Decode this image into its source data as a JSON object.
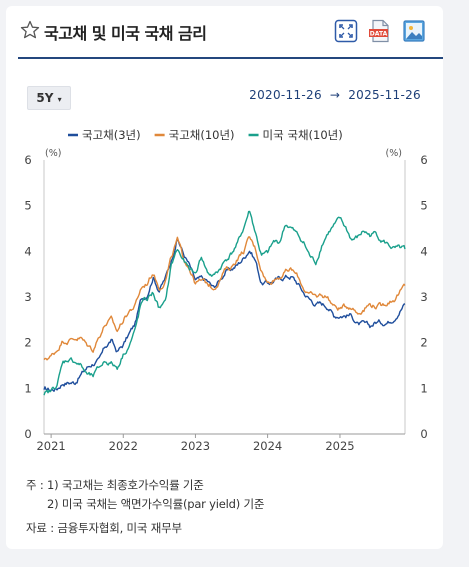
{
  "header": {
    "title": "국고채 및 미국 국채 금리",
    "icons": [
      "star-outline-icon",
      "fullscreen-icon",
      "data-download-icon",
      "image-download-icon"
    ],
    "data_icon_text": "DATA"
  },
  "controls": {
    "period_label": "5Y",
    "period_caret": "▾",
    "date_start": "2020-11-26",
    "date_arrow": "→",
    "date_end": "2025-11-26"
  },
  "notes": {
    "line1": "주 : 1)  국고채는 최종호가수익률 기준",
    "line2": "2)  미국 국채는 액면가수익률(par yield) 기준",
    "source": "자료 :  금융투자협회, 미국 재무부"
  },
  "chart_data": {
    "type": "line",
    "title": "",
    "y_unit_left": "(%)",
    "y_unit_right": "(%)",
    "ylim": [
      0,
      6
    ],
    "y_ticks": [
      0,
      1,
      2,
      3,
      4,
      5,
      6
    ],
    "xlim": [
      "2020-11-26",
      "2025-11-26"
    ],
    "x_ticks": [
      "2021",
      "2022",
      "2023",
      "2024",
      "2025"
    ],
    "x_tick_dates": [
      "2021-01-01",
      "2022-01-01",
      "2023-01-01",
      "2024-01-01",
      "2025-01-01"
    ],
    "grid": false,
    "legend_position": "top",
    "series": [
      {
        "name": "국고채(3년)",
        "color": "#1f4e9c",
        "x": [
          "2020-11-26",
          "2021-01-01",
          "2021-02-01",
          "2021-03-01",
          "2021-04-01",
          "2021-05-01",
          "2021-06-01",
          "2021-07-01",
          "2021-08-01",
          "2021-09-01",
          "2021-10-01",
          "2021-11-01",
          "2021-12-01",
          "2022-01-01",
          "2022-02-01",
          "2022-03-01",
          "2022-04-01",
          "2022-05-01",
          "2022-06-01",
          "2022-07-01",
          "2022-08-01",
          "2022-09-01",
          "2022-10-01",
          "2022-11-01",
          "2022-12-01",
          "2023-01-01",
          "2023-02-01",
          "2023-03-01",
          "2023-04-01",
          "2023-05-01",
          "2023-06-01",
          "2023-07-01",
          "2023-08-01",
          "2023-09-01",
          "2023-10-01",
          "2023-11-01",
          "2023-12-01",
          "2024-01-01",
          "2024-02-01",
          "2024-03-01",
          "2024-04-01",
          "2024-05-01",
          "2024-06-01",
          "2024-07-01",
          "2024-08-01",
          "2024-09-01",
          "2024-10-01",
          "2024-11-01",
          "2024-12-01",
          "2025-01-01",
          "2025-02-01",
          "2025-03-01",
          "2025-04-01",
          "2025-05-01",
          "2025-06-01",
          "2025-07-01",
          "2025-08-01",
          "2025-09-01",
          "2025-10-01",
          "2025-11-26"
        ],
        "values": [
          0.97,
          0.97,
          1.0,
          1.12,
          1.13,
          1.13,
          1.3,
          1.45,
          1.55,
          1.6,
          1.9,
          2.05,
          1.8,
          1.95,
          2.2,
          2.4,
          2.95,
          3.05,
          3.45,
          3.15,
          3.4,
          3.8,
          4.3,
          3.95,
          3.7,
          3.35,
          3.4,
          3.35,
          3.2,
          3.35,
          3.55,
          3.6,
          3.7,
          3.85,
          4.05,
          3.8,
          3.3,
          3.3,
          3.35,
          3.4,
          3.45,
          3.45,
          3.3,
          3.1,
          2.95,
          2.85,
          2.85,
          2.8,
          2.6,
          2.6,
          2.6,
          2.6,
          2.4,
          2.4,
          2.35,
          2.45,
          2.45,
          2.45,
          2.55,
          2.85
        ]
      },
      {
        "name": "국고채(10년)",
        "color": "#e0883a",
        "x": [
          "2020-11-26",
          "2021-01-01",
          "2021-02-01",
          "2021-03-01",
          "2021-04-01",
          "2021-05-01",
          "2021-06-01",
          "2021-07-01",
          "2021-08-01",
          "2021-09-01",
          "2021-10-01",
          "2021-11-01",
          "2021-12-01",
          "2022-01-01",
          "2022-02-01",
          "2022-03-01",
          "2022-04-01",
          "2022-05-01",
          "2022-06-01",
          "2022-07-01",
          "2022-08-01",
          "2022-09-01",
          "2022-10-01",
          "2022-11-01",
          "2022-12-01",
          "2023-01-01",
          "2023-02-01",
          "2023-03-01",
          "2023-04-01",
          "2023-05-01",
          "2023-06-01",
          "2023-07-01",
          "2023-08-01",
          "2023-09-01",
          "2023-10-01",
          "2023-11-01",
          "2023-12-01",
          "2024-01-01",
          "2024-02-01",
          "2024-03-01",
          "2024-04-01",
          "2024-05-01",
          "2024-06-01",
          "2024-07-01",
          "2024-08-01",
          "2024-09-01",
          "2024-10-01",
          "2024-11-01",
          "2024-12-01",
          "2025-01-01",
          "2025-02-01",
          "2025-03-01",
          "2025-04-01",
          "2025-05-01",
          "2025-06-01",
          "2025-07-01",
          "2025-08-01",
          "2025-09-01",
          "2025-10-01",
          "2025-11-26"
        ],
        "values": [
          1.63,
          1.7,
          1.85,
          2.05,
          2.05,
          2.1,
          2.1,
          1.95,
          1.85,
          2.15,
          2.4,
          2.5,
          2.25,
          2.5,
          2.7,
          2.8,
          3.2,
          3.3,
          3.55,
          3.2,
          3.35,
          3.85,
          4.25,
          3.85,
          3.65,
          3.3,
          3.35,
          3.3,
          3.2,
          3.35,
          3.6,
          3.65,
          3.85,
          4.0,
          4.3,
          4.05,
          3.6,
          3.3,
          3.4,
          3.45,
          3.55,
          3.6,
          3.45,
          3.2,
          3.05,
          3.0,
          3.05,
          3.0,
          2.8,
          2.75,
          2.8,
          2.8,
          2.65,
          2.75,
          2.85,
          2.8,
          2.8,
          2.9,
          2.95,
          3.25
        ]
      },
      {
        "name": "미국 국채(10년)",
        "color": "#1aa08c",
        "x": [
          "2020-11-26",
          "2021-01-01",
          "2021-02-01",
          "2021-03-01",
          "2021-04-01",
          "2021-05-01",
          "2021-06-01",
          "2021-07-01",
          "2021-08-01",
          "2021-09-01",
          "2021-10-01",
          "2021-11-01",
          "2021-12-01",
          "2022-01-01",
          "2022-02-01",
          "2022-03-01",
          "2022-04-01",
          "2022-05-01",
          "2022-06-01",
          "2022-07-01",
          "2022-08-01",
          "2022-09-01",
          "2022-10-01",
          "2022-11-01",
          "2022-12-01",
          "2023-01-01",
          "2023-02-01",
          "2023-03-01",
          "2023-04-01",
          "2023-05-01",
          "2023-06-01",
          "2023-07-01",
          "2023-08-01",
          "2023-09-01",
          "2023-10-01",
          "2023-11-01",
          "2023-12-01",
          "2024-01-01",
          "2024-02-01",
          "2024-03-01",
          "2024-04-01",
          "2024-05-01",
          "2024-06-01",
          "2024-07-01",
          "2024-08-01",
          "2024-09-01",
          "2024-10-01",
          "2024-11-01",
          "2024-12-01",
          "2025-01-01",
          "2025-02-01",
          "2025-03-01",
          "2025-04-01",
          "2025-05-01",
          "2025-06-01",
          "2025-07-01",
          "2025-08-01",
          "2025-09-01",
          "2025-10-01",
          "2025-11-26"
        ],
        "values": [
          0.85,
          0.93,
          1.1,
          1.55,
          1.65,
          1.6,
          1.5,
          1.3,
          1.25,
          1.45,
          1.6,
          1.55,
          1.45,
          1.75,
          1.95,
          2.25,
          2.85,
          2.95,
          3.1,
          2.75,
          2.85,
          3.7,
          4.05,
          3.8,
          3.6,
          3.5,
          3.9,
          3.55,
          3.45,
          3.6,
          3.8,
          3.95,
          4.15,
          4.5,
          4.9,
          4.4,
          3.9,
          3.95,
          4.2,
          4.2,
          4.6,
          4.5,
          4.35,
          4.2,
          3.9,
          3.75,
          4.15,
          4.4,
          4.55,
          4.7,
          4.5,
          4.25,
          4.3,
          4.45,
          4.35,
          4.4,
          4.25,
          4.15,
          4.05,
          4.05
        ]
      }
    ]
  }
}
